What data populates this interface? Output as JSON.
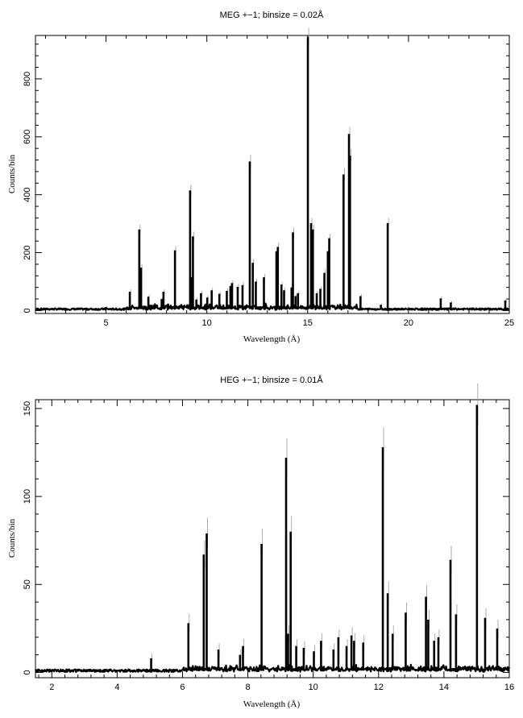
{
  "chart_data": [
    {
      "type": "line",
      "title": "MEG +−1; binsize = 0.02Å",
      "xlabel": "Wavelength (Å)",
      "ylabel": "Counts/bin",
      "xlim": [
        1.5,
        25
      ],
      "ylim": [
        -10,
        950
      ],
      "xticks": [
        5,
        10,
        15,
        20,
        25
      ],
      "yticks": [
        0,
        200,
        400,
        600,
        800
      ],
      "grid": false,
      "baseline": 5,
      "series": [
        {
          "x": [
            5.0,
            6.18,
            6.65,
            6.74,
            7.1,
            7.76,
            7.85,
            8.42,
            9.17,
            9.23,
            9.31,
            9.48,
            9.71,
            10.02,
            10.24,
            10.62,
            10.99,
            11.17,
            11.25,
            11.53,
            11.77,
            12.13,
            12.28,
            12.43,
            12.83,
            13.45,
            13.52,
            13.7,
            13.83,
            14.2,
            14.27,
            14.4,
            14.52,
            15.01,
            15.17,
            15.26,
            15.45,
            15.63,
            15.83,
            16.0,
            16.07,
            16.78,
            17.05,
            17.1,
            17.62,
            18.63,
            18.97,
            21.6,
            22.1,
            24.8
          ],
          "y": [
            12,
            65,
            280,
            148,
            48,
            40,
            65,
            208,
            415,
            115,
            256,
            38,
            60,
            45,
            70,
            58,
            68,
            85,
            95,
            82,
            88,
            515,
            165,
            100,
            115,
            205,
            220,
            90,
            70,
            80,
            270,
            50,
            60,
            945,
            302,
            280,
            60,
            75,
            130,
            205,
            250,
            470,
            610,
            535,
            50,
            20,
            302,
            42,
            28,
            35
          ]
        }
      ]
    },
    {
      "type": "line",
      "title": "HEG +−1; binsize = 0.01Å",
      "xlabel": "Wavelength (Å)",
      "ylabel": "Counts/bin",
      "xlim": [
        1.5,
        16
      ],
      "ylim": [
        -3,
        155
      ],
      "xticks": [
        2,
        4,
        6,
        8,
        10,
        12,
        14,
        16
      ],
      "yticks": [
        0,
        50,
        100,
        150
      ],
      "grid": false,
      "baseline": 1,
      "series": [
        {
          "x": [
            5.04,
            6.18,
            6.65,
            6.74,
            7.1,
            7.76,
            7.85,
            8.42,
            9.17,
            9.23,
            9.31,
            9.48,
            9.71,
            10.02,
            10.24,
            10.62,
            10.77,
            11.02,
            11.17,
            11.25,
            11.53,
            12.13,
            12.28,
            12.43,
            12.83,
            13.45,
            13.52,
            13.7,
            13.83,
            14.2,
            14.37,
            15.01,
            15.26,
            15.63
          ],
          "y": [
            8,
            28,
            67,
            79,
            13,
            10,
            15,
            73,
            122,
            22,
            80,
            15,
            14,
            12,
            18,
            13,
            20,
            15,
            21,
            18,
            17,
            128,
            45,
            22,
            34,
            43,
            30,
            18,
            20,
            64,
            33,
            152,
            31,
            25
          ]
        }
      ]
    }
  ]
}
